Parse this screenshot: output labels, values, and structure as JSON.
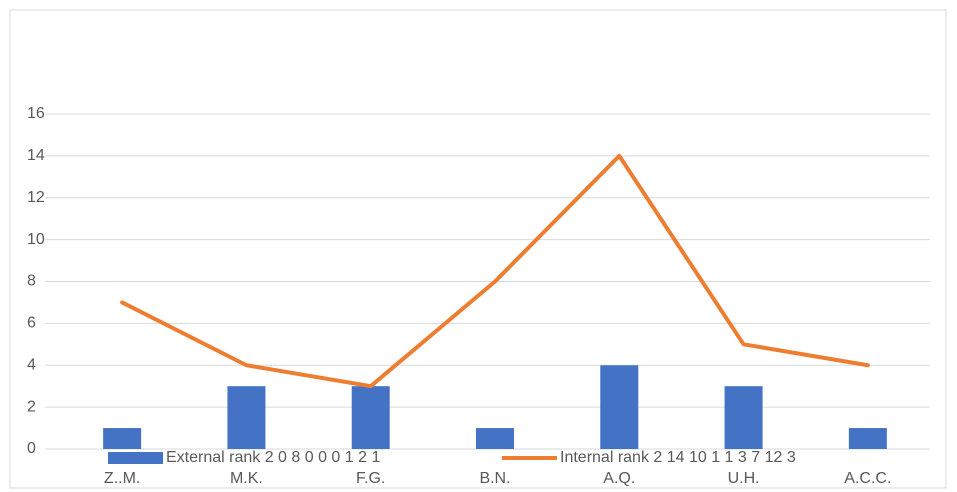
{
  "chart_data": {
    "type": "bar",
    "categories": [
      "Z..M.",
      "M.K.",
      "F.G.",
      "B.N.",
      "A.Q.",
      "U.H.",
      "A.C.C."
    ],
    "series": [
      {
        "name": "External rank 2 0 8 0 0 0 1 2 1",
        "type": "bar",
        "color": "#4472c4",
        "values": [
          1,
          3,
          3,
          1,
          4,
          3,
          1
        ]
      },
      {
        "name": "Internal rank 2 14 10 1 1 3 7 12 3",
        "type": "line",
        "color": "#ed7d31",
        "values": [
          7,
          4,
          3,
          8,
          14,
          5,
          4
        ]
      }
    ],
    "ylim": [
      0,
      16
    ],
    "yticks": [
      0,
      2,
      4,
      6,
      8,
      10,
      12,
      14,
      16
    ],
    "grid": true,
    "legend": "bottom"
  }
}
